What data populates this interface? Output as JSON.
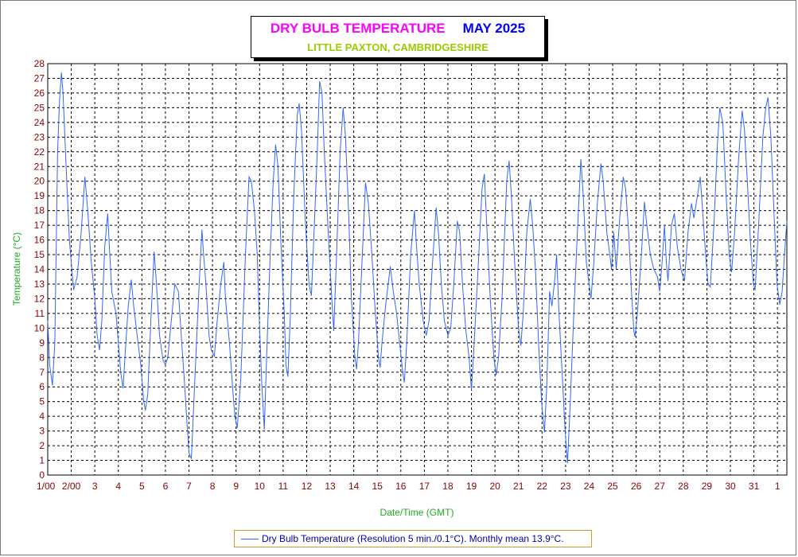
{
  "header": {
    "title": "DRY BULB TEMPERATURE",
    "month": "MAY 2025",
    "subtitle": "LITTLE PAXTON, CAMBRIDGESHIRE"
  },
  "legend": {
    "text": "Dry Bulb Temperature (Resolution 5 min./0.1°C). Monthly mean 13.9°C."
  },
  "colors": {
    "series": "#3366ff",
    "title": "#ff00ff",
    "month": "#0000ff",
    "subtitle": "#99cc00",
    "tick_labels": "#8b0000",
    "axis_titles": "#22aa22",
    "grid": "#000000"
  },
  "chart_data": {
    "type": "line",
    "title": "DRY BULB TEMPERATURE",
    "subtitle": "LITTLE PAXTON, CAMBRIDGESHIRE",
    "xlabel": "Date/Time (GMT)",
    "ylabel": "Temperature (°C)",
    "ylim": [
      0,
      28
    ],
    "xlim": [
      0,
      31.4
    ],
    "grid": true,
    "legend_position": "bottom",
    "y_ticks": [
      0,
      1,
      2,
      3,
      4,
      5,
      6,
      7,
      8,
      9,
      10,
      11,
      12,
      13,
      14,
      15,
      16,
      17,
      18,
      19,
      20,
      21,
      22,
      23,
      24,
      25,
      26,
      27,
      28
    ],
    "x_tick_labels": [
      "1/00",
      "2/00",
      "3",
      "4",
      "5",
      "6",
      "7",
      "8",
      "9",
      "10",
      "11",
      "12",
      "13",
      "14",
      "15",
      "16",
      "17",
      "18",
      "19",
      "20",
      "21",
      "22",
      "23",
      "24",
      "25",
      "26",
      "27",
      "28",
      "29",
      "30",
      "31",
      "1"
    ],
    "series": [
      {
        "name": "Dry Bulb Temperature (Resolution 5 min./0.1°C). Monthly mean 13.9°C.",
        "x_unit": "days since 1 May 00:00 GMT",
        "points": [
          [
            0.0,
            10.5
          ],
          [
            0.08,
            7.5
          ],
          [
            0.2,
            6.1
          ],
          [
            0.3,
            9.0
          ],
          [
            0.42,
            22.0
          ],
          [
            0.5,
            25.5
          ],
          [
            0.58,
            27.4
          ],
          [
            0.65,
            26.0
          ],
          [
            0.78,
            21.0
          ],
          [
            0.92,
            16.0
          ],
          [
            1.1,
            12.6
          ],
          [
            1.25,
            13.5
          ],
          [
            1.42,
            16.5
          ],
          [
            1.58,
            20.3
          ],
          [
            1.7,
            18.0
          ],
          [
            1.85,
            14.5
          ],
          [
            2.0,
            12.0
          ],
          [
            2.1,
            9.5
          ],
          [
            2.2,
            8.5
          ],
          [
            2.3,
            10.5
          ],
          [
            2.42,
            15.5
          ],
          [
            2.55,
            17.8
          ],
          [
            2.62,
            15.5
          ],
          [
            2.72,
            12.5
          ],
          [
            2.9,
            11.0
          ],
          [
            3.1,
            7.0
          ],
          [
            3.2,
            5.9
          ],
          [
            3.3,
            8.5
          ],
          [
            3.42,
            11.5
          ],
          [
            3.55,
            13.3
          ],
          [
            3.65,
            11.5
          ],
          [
            3.8,
            9.5
          ],
          [
            3.95,
            7.5
          ],
          [
            4.08,
            5.0
          ],
          [
            4.15,
            4.4
          ],
          [
            4.25,
            5.5
          ],
          [
            4.38,
            10.5
          ],
          [
            4.52,
            15.2
          ],
          [
            4.62,
            13.0
          ],
          [
            4.75,
            9.5
          ],
          [
            4.9,
            7.8
          ],
          [
            5.0,
            7.5
          ],
          [
            5.1,
            8.0
          ],
          [
            5.25,
            10.5
          ],
          [
            5.4,
            13.0
          ],
          [
            5.55,
            12.5
          ],
          [
            5.65,
            10.0
          ],
          [
            5.8,
            6.5
          ],
          [
            5.92,
            3.5
          ],
          [
            6.0,
            1.5
          ],
          [
            6.1,
            1.1
          ],
          [
            6.25,
            6.5
          ],
          [
            6.42,
            12.5
          ],
          [
            6.55,
            16.7
          ],
          [
            6.62,
            15.0
          ],
          [
            6.72,
            13.0
          ],
          [
            6.85,
            9.5
          ],
          [
            6.95,
            8.5
          ],
          [
            7.08,
            8.1
          ],
          [
            7.2,
            10.5
          ],
          [
            7.35,
            13.0
          ],
          [
            7.48,
            14.5
          ],
          [
            7.55,
            12.0
          ],
          [
            7.72,
            9.0
          ],
          [
            7.85,
            6.0
          ],
          [
            7.95,
            4.0
          ],
          [
            8.05,
            3.2
          ],
          [
            8.2,
            6.5
          ],
          [
            8.4,
            15.0
          ],
          [
            8.55,
            20.3
          ],
          [
            8.65,
            20.0
          ],
          [
            8.78,
            18.0
          ],
          [
            8.9,
            15.0
          ],
          [
            9.0,
            10.0
          ],
          [
            9.1,
            6.0
          ],
          [
            9.2,
            3.1
          ],
          [
            9.3,
            8.0
          ],
          [
            9.45,
            15.0
          ],
          [
            9.58,
            20.0
          ],
          [
            9.68,
            22.5
          ],
          [
            9.78,
            21.0
          ],
          [
            9.9,
            16.0
          ],
          [
            10.05,
            11.0
          ],
          [
            10.12,
            7.5
          ],
          [
            10.2,
            6.7
          ],
          [
            10.3,
            10.5
          ],
          [
            10.45,
            19.0
          ],
          [
            10.6,
            24.5
          ],
          [
            10.68,
            25.3
          ],
          [
            10.78,
            23.5
          ],
          [
            10.95,
            17.0
          ],
          [
            11.1,
            13.0
          ],
          [
            11.2,
            12.2
          ],
          [
            11.3,
            16.0
          ],
          [
            11.45,
            22.0
          ],
          [
            11.55,
            26.8
          ],
          [
            11.65,
            26.0
          ],
          [
            11.75,
            22.0
          ],
          [
            11.9,
            17.0
          ],
          [
            12.05,
            12.5
          ],
          [
            12.15,
            9.8
          ],
          [
            12.25,
            14.0
          ],
          [
            12.42,
            22.0
          ],
          [
            12.55,
            25.0
          ],
          [
            12.65,
            23.0
          ],
          [
            12.78,
            18.0
          ],
          [
            12.9,
            12.0
          ],
          [
            13.05,
            8.0
          ],
          [
            13.12,
            7.2
          ],
          [
            13.2,
            9.0
          ],
          [
            13.35,
            14.5
          ],
          [
            13.5,
            19.9
          ],
          [
            13.62,
            18.5
          ],
          [
            13.75,
            15.5
          ],
          [
            13.92,
            11.0
          ],
          [
            14.05,
            8.0
          ],
          [
            14.12,
            7.3
          ],
          [
            14.2,
            9.0
          ],
          [
            14.35,
            11.5
          ],
          [
            14.55,
            14.2
          ],
          [
            14.68,
            12.5
          ],
          [
            14.82,
            11.0
          ],
          [
            14.95,
            9.0
          ],
          [
            15.08,
            7.0
          ],
          [
            15.15,
            6.3
          ],
          [
            15.25,
            9.0
          ],
          [
            15.42,
            15.0
          ],
          [
            15.58,
            18.0
          ],
          [
            15.65,
            16.0
          ],
          [
            15.78,
            13.0
          ],
          [
            15.95,
            10.5
          ],
          [
            16.08,
            9.5
          ],
          [
            16.2,
            10.5
          ],
          [
            16.35,
            14.5
          ],
          [
            16.5,
            18.2
          ],
          [
            16.6,
            16.5
          ],
          [
            16.72,
            13.0
          ],
          [
            16.85,
            10.5
          ],
          [
            17.0,
            9.5
          ],
          [
            17.12,
            10.0
          ],
          [
            17.25,
            13.0
          ],
          [
            17.4,
            17.3
          ],
          [
            17.5,
            16.5
          ],
          [
            17.62,
            13.0
          ],
          [
            17.75,
            10.0
          ],
          [
            17.9,
            8.0
          ],
          [
            18.0,
            5.8
          ],
          [
            18.1,
            8.5
          ],
          [
            18.25,
            13.0
          ],
          [
            18.45,
            19.5
          ],
          [
            18.55,
            20.5
          ],
          [
            18.65,
            17.0
          ],
          [
            18.8,
            12.0
          ],
          [
            18.95,
            8.0
          ],
          [
            19.05,
            6.8
          ],
          [
            19.15,
            8.0
          ],
          [
            19.3,
            12.0
          ],
          [
            19.5,
            20.0
          ],
          [
            19.6,
            21.4
          ],
          [
            19.7,
            19.0
          ],
          [
            19.85,
            14.0
          ],
          [
            20.0,
            10.0
          ],
          [
            20.1,
            8.8
          ],
          [
            20.2,
            11.0
          ],
          [
            20.35,
            16.5
          ],
          [
            20.5,
            18.8
          ],
          [
            20.6,
            17.0
          ],
          [
            20.72,
            14.0
          ],
          [
            20.85,
            9.0
          ],
          [
            20.98,
            5.0
          ],
          [
            21.1,
            2.9
          ],
          [
            21.2,
            6.0
          ],
          [
            21.32,
            12.5
          ],
          [
            21.42,
            11.5
          ],
          [
            21.55,
            13.5
          ],
          [
            21.62,
            15.0
          ],
          [
            21.72,
            11.0
          ],
          [
            21.85,
            7.0
          ],
          [
            21.98,
            3.0
          ],
          [
            22.08,
            0.8
          ],
          [
            22.2,
            5.0
          ],
          [
            22.35,
            11.0
          ],
          [
            22.5,
            16.5
          ],
          [
            22.65,
            21.5
          ],
          [
            22.75,
            19.0
          ],
          [
            22.88,
            14.5
          ],
          [
            23.0,
            13.0
          ],
          [
            23.08,
            12.0
          ],
          [
            23.2,
            14.5
          ],
          [
            23.35,
            18.5
          ],
          [
            23.5,
            21.2
          ],
          [
            23.6,
            20.0
          ],
          [
            23.75,
            16.5
          ],
          [
            23.88,
            15.0
          ],
          [
            23.95,
            14.0
          ],
          [
            24.05,
            16.5
          ],
          [
            24.15,
            14.0
          ],
          [
            24.3,
            17.5
          ],
          [
            24.45,
            20.3
          ],
          [
            24.55,
            19.5
          ],
          [
            24.68,
            16.5
          ],
          [
            24.8,
            12.5
          ],
          [
            24.9,
            9.8
          ],
          [
            24.95,
            9.4
          ],
          [
            25.05,
            11.0
          ],
          [
            25.2,
            14.5
          ],
          [
            25.35,
            18.6
          ],
          [
            25.45,
            17.0
          ],
          [
            25.6,
            15.0
          ],
          [
            25.75,
            14.0
          ],
          [
            25.9,
            13.5
          ],
          [
            26.0,
            12.5
          ],
          [
            26.1,
            14.5
          ],
          [
            26.2,
            17.0
          ],
          [
            26.28,
            14.5
          ],
          [
            26.35,
            13.2
          ],
          [
            26.5,
            17.0
          ],
          [
            26.62,
            17.8
          ],
          [
            26.75,
            15.5
          ],
          [
            26.9,
            14.0
          ],
          [
            27.05,
            13.2
          ],
          [
            27.2,
            16.5
          ],
          [
            27.35,
            18.5
          ],
          [
            27.45,
            17.5
          ],
          [
            27.6,
            19.0
          ],
          [
            27.72,
            20.3
          ],
          [
            27.82,
            18.0
          ],
          [
            27.95,
            15.0
          ],
          [
            28.05,
            13.0
          ],
          [
            28.15,
            12.8
          ],
          [
            28.3,
            17.0
          ],
          [
            28.45,
            22.5
          ],
          [
            28.55,
            25.0
          ],
          [
            28.68,
            24.0
          ],
          [
            28.82,
            19.0
          ],
          [
            28.95,
            15.0
          ],
          [
            29.05,
            13.8
          ],
          [
            29.18,
            16.5
          ],
          [
            29.35,
            21.5
          ],
          [
            29.5,
            24.8
          ],
          [
            29.6,
            23.5
          ],
          [
            29.72,
            20.0
          ],
          [
            29.85,
            16.0
          ],
          [
            29.98,
            13.0
          ],
          [
            30.05,
            12.6
          ],
          [
            30.2,
            17.0
          ],
          [
            30.38,
            23.0
          ],
          [
            30.5,
            25.0
          ],
          [
            30.6,
            25.7
          ],
          [
            30.72,
            23.0
          ],
          [
            30.85,
            18.0
          ],
          [
            30.98,
            13.0
          ],
          [
            31.1,
            11.6
          ],
          [
            31.2,
            12.5
          ],
          [
            31.3,
            15.0
          ],
          [
            31.4,
            17.3
          ]
        ]
      }
    ]
  }
}
